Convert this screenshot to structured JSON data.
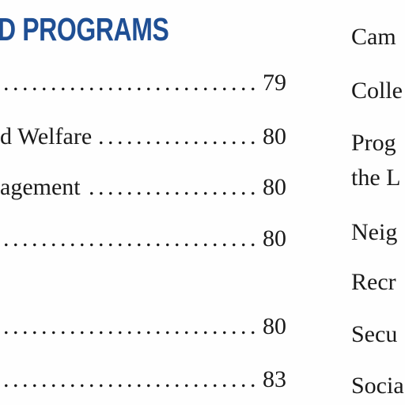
{
  "heading": "D PROGRAMS",
  "toc": [
    {
      "label": "",
      "page": "79"
    },
    {
      "label": "d Welfare",
      "page": "80"
    },
    {
      "label": "agement",
      "page": "80"
    },
    {
      "label": "",
      "page": "80"
    },
    {
      "label": "",
      "page": "80"
    },
    {
      "label": "",
      "page": "83"
    }
  ],
  "right_items": [
    {
      "line1": "Cam"
    },
    {
      "line1": "Colle"
    },
    {
      "line1": "Prog",
      "line2": "the L"
    },
    {
      "line1": "Neig"
    },
    {
      "line1": "Recr"
    },
    {
      "line1": "Secu"
    },
    {
      "line1": "Socia"
    }
  ]
}
